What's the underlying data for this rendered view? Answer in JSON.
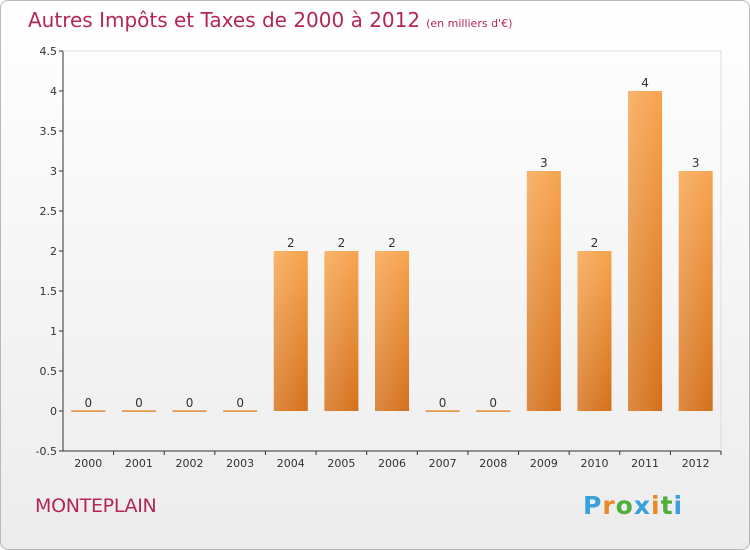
{
  "chart_data": {
    "type": "bar",
    "title": "Autres Impôts et Taxes de 2000 à 2012",
    "subtitle": "(en milliers d'€)",
    "categories": [
      "2000",
      "2001",
      "2002",
      "2003",
      "2004",
      "2005",
      "2006",
      "2007",
      "2008",
      "2009",
      "2010",
      "2011",
      "2012"
    ],
    "values": [
      0,
      0,
      0,
      0,
      2,
      2,
      2,
      0,
      0,
      3,
      2,
      4,
      3
    ],
    "data_labels": [
      "0",
      "0",
      "0",
      "0",
      "2",
      "2",
      "2",
      "0",
      "0",
      "3",
      "2",
      "4",
      "3"
    ],
    "ylim": [
      -0.5,
      4.5
    ],
    "yticks": [
      4.5,
      4,
      3.5,
      3,
      2.5,
      2,
      1.5,
      1,
      0.5,
      0,
      -0.5
    ],
    "ytick_labels": [
      "4.5",
      "4",
      "3.5",
      "3",
      "2.5",
      "2",
      "1.5",
      "1",
      "0.5",
      "0",
      "-0.5"
    ],
    "grid": false,
    "xlabel": "",
    "ylabel": "",
    "bar_color": "#f08a2c",
    "title_color": "#b4265a"
  },
  "commune": "MONTEPLAIN",
  "logo": {
    "letters": [
      "P",
      "r",
      "o",
      "x",
      "i",
      "t",
      "i"
    ],
    "colors": [
      "#3aa0dc",
      "#e8892a",
      "#4fae3c",
      "#3aa0dc",
      "#e8892a",
      "#4fae3c",
      "#3aa0dc"
    ]
  }
}
